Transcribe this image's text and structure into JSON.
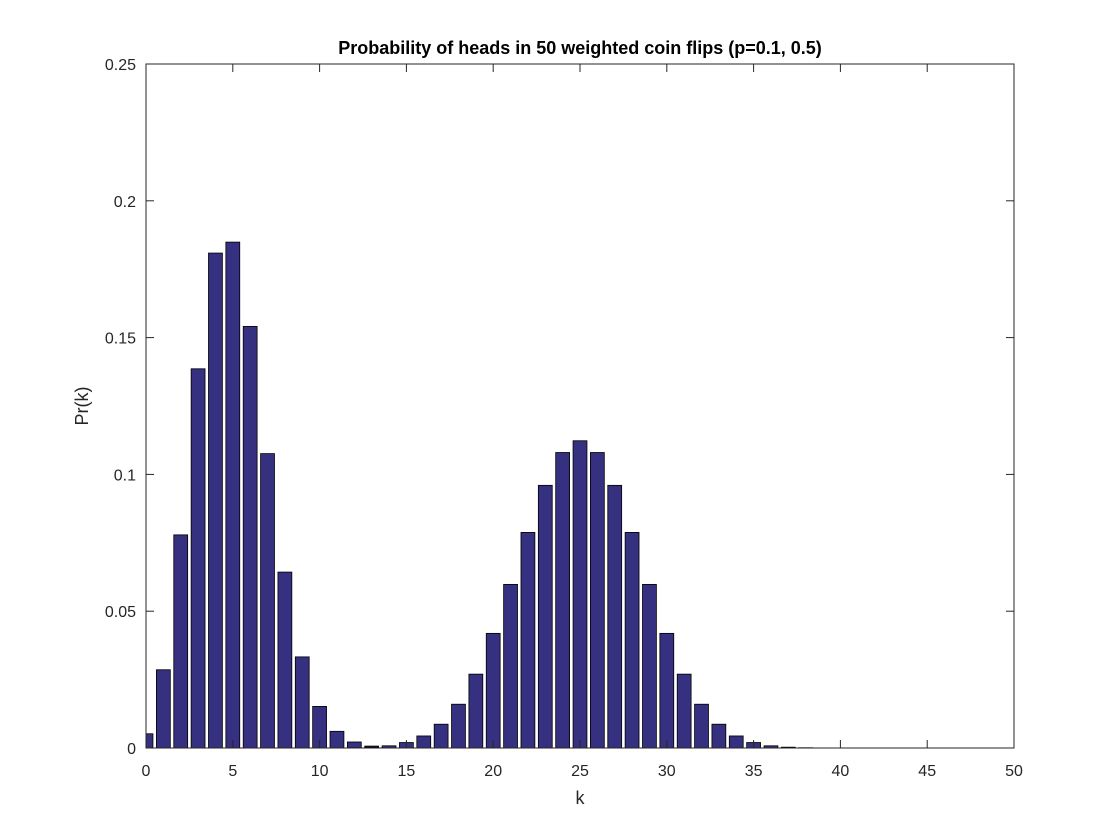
{
  "chart_data": {
    "type": "bar",
    "title": "Probability of heads in 50 weighted coin flips (p=0.1, 0.5)",
    "xlabel": "k",
    "ylabel": "Pr(k)",
    "xlim": [
      0,
      50
    ],
    "ylim": [
      0,
      0.25
    ],
    "xticks": [
      0,
      5,
      10,
      15,
      20,
      25,
      30,
      35,
      40,
      45,
      50
    ],
    "yticks": [
      0,
      0.05,
      0.1,
      0.15,
      0.2,
      0.25
    ],
    "xtick_labels": [
      "0",
      "5",
      "10",
      "15",
      "20",
      "25",
      "30",
      "35",
      "40",
      "45",
      "50"
    ],
    "ytick_labels": [
      "0",
      "0.05",
      "0.1",
      "0.15",
      "0.2",
      "0.25"
    ],
    "grid": false,
    "bar_color": "#35307f",
    "edge_color": "#000000",
    "series": [
      {
        "x": [
          0,
          1,
          2,
          3,
          4,
          5,
          6,
          7,
          8,
          9,
          10,
          11,
          12,
          13,
          14,
          15,
          16,
          17,
          18,
          19,
          20,
          21,
          22,
          23,
          24,
          25,
          26,
          27,
          28,
          29,
          30,
          31,
          32,
          33,
          34,
          35,
          36,
          37,
          38,
          39,
          40,
          41,
          42,
          43,
          44,
          45,
          46,
          47,
          48,
          49,
          50
        ],
        "values": [
          0.0052,
          0.0286,
          0.0779,
          0.1386,
          0.1809,
          0.1849,
          0.1541,
          0.1076,
          0.0643,
          0.0333,
          0.0152,
          0.0061,
          0.0022,
          0.0007,
          0.0002,
          0.0001,
          0,
          0,
          0,
          0,
          0,
          0,
          0,
          0,
          0,
          0,
          0,
          0,
          0,
          0,
          0,
          0,
          0,
          0,
          0,
          0,
          0,
          0,
          0,
          0,
          0,
          0,
          0,
          0,
          0,
          0,
          0,
          0,
          0,
          0,
          0
        ]
      },
      {
        "x": [
          0,
          1,
          2,
          3,
          4,
          5,
          6,
          7,
          8,
          9,
          10,
          11,
          12,
          13,
          14,
          15,
          16,
          17,
          18,
          19,
          20,
          21,
          22,
          23,
          24,
          25,
          26,
          27,
          28,
          29,
          30,
          31,
          32,
          33,
          34,
          35,
          36,
          37,
          38,
          39,
          40,
          41,
          42,
          43,
          44,
          45,
          46,
          47,
          48,
          49,
          50
        ],
        "values": [
          0,
          0,
          0,
          0,
          0,
          0,
          0,
          0,
          0,
          0,
          0,
          0,
          0.0001,
          0.0003,
          0.0008,
          0.002,
          0.0044,
          0.0087,
          0.016,
          0.027,
          0.0419,
          0.0598,
          0.0788,
          0.096,
          0.108,
          0.1123,
          0.108,
          0.096,
          0.0788,
          0.0598,
          0.0419,
          0.027,
          0.016,
          0.0087,
          0.0044,
          0.002,
          0.0008,
          0.0003,
          0.0001,
          0,
          0,
          0,
          0,
          0,
          0,
          0,
          0,
          0,
          0,
          0,
          0
        ]
      }
    ]
  }
}
